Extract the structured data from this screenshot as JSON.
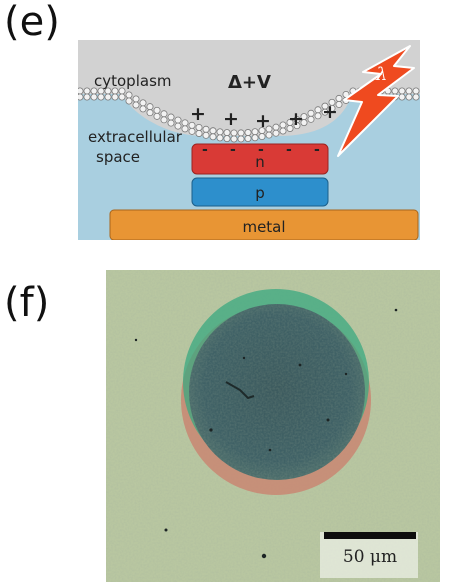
{
  "panel_e": {
    "label": "(e)",
    "cytoplasm": "cytoplasm",
    "voltage": "Δ+V",
    "extracellular_line1": "extracellular",
    "extracellular_line2": "space",
    "lambda": "λ",
    "layer_n": "n",
    "layer_p": "p",
    "layer_metal": "metal",
    "plus_sign": "+",
    "minus_sign": "-",
    "colors": {
      "cytoplasm": "#d2d2d2",
      "extracellular": "#a9cfe0",
      "n_layer": "#d93a36",
      "p_layer": "#2d8fcc",
      "metal": "#e89534",
      "lightning": "#ef4a1f"
    }
  },
  "panel_f": {
    "label": "(f)",
    "scale_bar": "50 μm",
    "colors": {
      "background": "#b9c7a1",
      "disk": "#3f5e62",
      "green_edge": "#3aa880",
      "red_edge": "#c98672"
    }
  }
}
